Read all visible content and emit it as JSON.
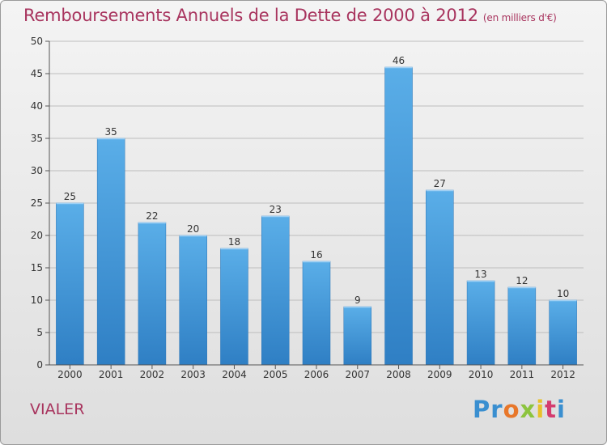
{
  "chart_data": {
    "type": "bar",
    "title": "Remboursements Annuels de la Dette de 2000 à 2012",
    "subtitle": "(en milliers d'€)",
    "categories": [
      "2000",
      "2001",
      "2002",
      "2003",
      "2004",
      "2005",
      "2006",
      "2007",
      "2008",
      "2009",
      "2010",
      "2011",
      "2012"
    ],
    "values": [
      25,
      35,
      22,
      20,
      18,
      23,
      16,
      9,
      46,
      27,
      13,
      12,
      10
    ],
    "ylim": [
      0,
      50
    ],
    "yticks": [
      0,
      5,
      10,
      15,
      20,
      25,
      30,
      35,
      40,
      45,
      50
    ],
    "xlabel": "",
    "ylabel": "",
    "grid": true,
    "bar_color": "#3a8fd4"
  },
  "footer": {
    "commune": "VIALER"
  },
  "logo": {
    "p1": "Pr",
    "p2": "o",
    "p3": "x",
    "p4": "i",
    "p5": "t",
    "p6": "i"
  }
}
